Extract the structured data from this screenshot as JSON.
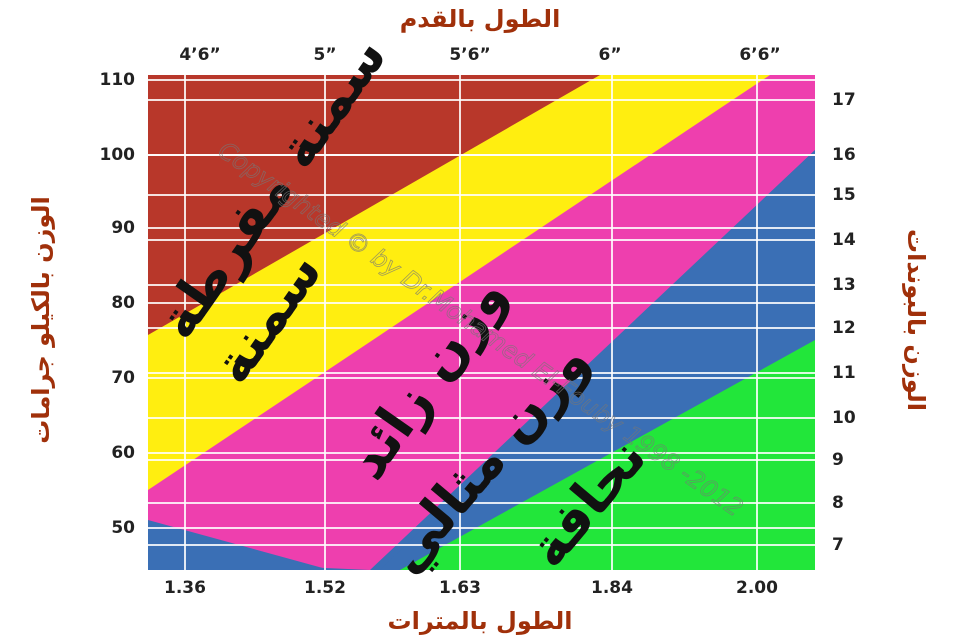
{
  "top_axis": {
    "title": "الطول بالقدم",
    "ticks": [
      "4’6”",
      "5”",
      "5’6”",
      "6”",
      "6’6”"
    ]
  },
  "bottom_axis": {
    "title": "الطول بالمترات",
    "ticks": [
      "1.36",
      "1.52",
      "1.63",
      "1.84",
      "2.00"
    ]
  },
  "left_axis": {
    "title": "الوزن بالكيلو جرامات",
    "ticks": [
      "110",
      "100",
      "90",
      "80",
      "70",
      "60",
      "50"
    ]
  },
  "right_axis": {
    "title": "الوزن بالبوندات",
    "ticks": [
      "17",
      "16",
      "15",
      "14",
      "13",
      "12",
      "11",
      "10",
      "9",
      "8",
      "7"
    ]
  },
  "zones": [
    "سمنة مفرطة",
    "سمنة",
    "وزن زائد",
    "وزن مثالي",
    "نحافة"
  ],
  "watermark": "Copyrighted © by Dr.Mohamed El-Fouby 1998 -2012"
}
